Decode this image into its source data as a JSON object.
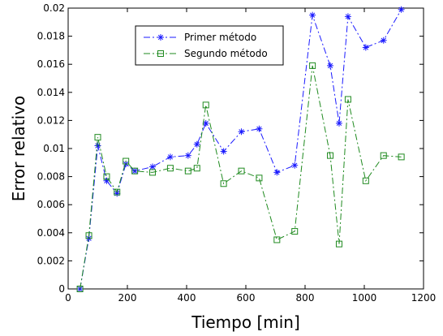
{
  "chart_data": {
    "type": "line",
    "xlabel": "Tiempo [min]",
    "ylabel": "Error relativo",
    "xlim": [
      0,
      1200
    ],
    "ylim": [
      0,
      0.02
    ],
    "xticks": [
      0,
      200,
      400,
      600,
      800,
      1000,
      1200
    ],
    "yticks": [
      0,
      0.002,
      0.004,
      0.006,
      0.008,
      0.01,
      0.012,
      0.014,
      0.016,
      0.018,
      0.02
    ],
    "xtick_labels": [
      "0",
      "200",
      "400",
      "600",
      "800",
      "1000",
      "1200"
    ],
    "ytick_labels": [
      "0",
      "0.002",
      "0.004",
      "0.006",
      "0.008",
      "0.01",
      "0.012",
      "0.014",
      "0.016",
      "0.018",
      "0.02"
    ],
    "grid": false,
    "legend_position": "top-left",
    "series": [
      {
        "name": "Primer método",
        "color": "#1a1aff",
        "marker": "asterisk",
        "line_style": "dash-dot",
        "x": [
          40,
          70,
          100,
          130,
          165,
          195,
          225,
          285,
          345,
          405,
          435,
          465,
          525,
          585,
          645,
          705,
          765,
          825,
          885,
          915,
          945,
          1005,
          1065,
          1125
        ],
        "y": [
          0.0,
          0.0036,
          0.0102,
          0.0077,
          0.0068,
          0.0089,
          0.0084,
          0.0087,
          0.0094,
          0.0095,
          0.0103,
          0.0118,
          0.0098,
          0.0112,
          0.0114,
          0.0083,
          0.0088,
          0.0195,
          0.0159,
          0.0118,
          0.0194,
          0.0172,
          0.0177,
          0.0199
        ]
      },
      {
        "name": "Segundo método",
        "color": "#1f8a1f",
        "marker": "square",
        "line_style": "dash-dot",
        "x": [
          40,
          70,
          100,
          130,
          165,
          195,
          225,
          285,
          345,
          405,
          435,
          465,
          525,
          585,
          645,
          705,
          765,
          825,
          885,
          915,
          945,
          1005,
          1065,
          1125
        ],
        "y": [
          0.0,
          0.0038,
          0.0108,
          0.008,
          0.0069,
          0.0091,
          0.0084,
          0.0083,
          0.0086,
          0.0084,
          0.0086,
          0.0131,
          0.0075,
          0.0084,
          0.0079,
          0.0035,
          0.0041,
          0.0159,
          0.0095,
          0.0032,
          0.0135,
          0.0077,
          0.0095,
          0.0094
        ]
      }
    ]
  }
}
